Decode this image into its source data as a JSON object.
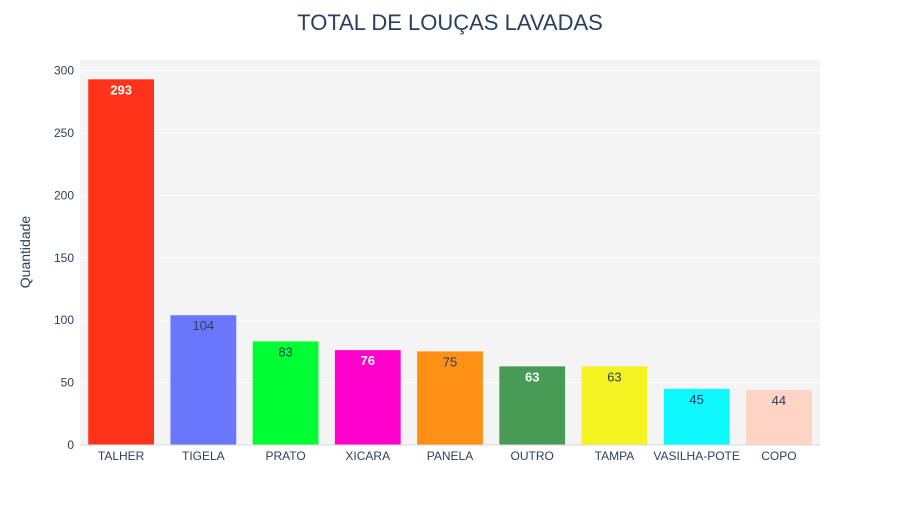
{
  "chart_data": {
    "type": "bar",
    "title": "TOTAL DE LOUÇAS LAVADAS",
    "xlabel": "",
    "ylabel": "Quantidade",
    "categories": [
      "TALHER",
      "TIGELA",
      "PRATO",
      "XICARA",
      "PANELA",
      "OUTRO",
      "TAMPA",
      "VASILHA-POTE",
      "COPO"
    ],
    "values": [
      293,
      104,
      83,
      76,
      75,
      63,
      63,
      45,
      44
    ],
    "colors": [
      "#FF3319",
      "#6A76FC",
      "#00FE35",
      "#FF00CC",
      "#FE9115",
      "#479B55",
      "#F5F321",
      "#0DF9FF",
      "#FED4C4"
    ],
    "label_colors": [
      "#ffffff",
      "#2a3f5f",
      "#2a3f5f",
      "#ffffff",
      "#2a3f5f",
      "#ffffff",
      "#2a3f5f",
      "#2a3f5f",
      "#2a3f5f"
    ],
    "label_bold": [
      true,
      false,
      false,
      true,
      false,
      true,
      false,
      false,
      false
    ],
    "ylim": [
      0,
      300
    ],
    "yticks": [
      0,
      50,
      100,
      150,
      200,
      250,
      300
    ],
    "grid": true,
    "legend": "none"
  }
}
